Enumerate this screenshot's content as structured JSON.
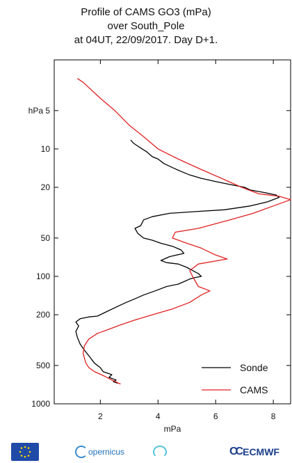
{
  "title": {
    "line1": "Profile of CAMS GO3 (mPa)",
    "line2": "over South_Pole",
    "line3": "at 04UT, 22/09/2017. Day D+1."
  },
  "chart_data": {
    "type": "line",
    "title": "Profile of CAMS GO3 (mPa) over South_Pole at 04UT, 22/09/2017. Day D+1.",
    "xlabel": "mPa",
    "ylabel": "hPa",
    "xlim": [
      0.4,
      8.6
    ],
    "ylim": [
      1000,
      2
    ],
    "y_scale": "log",
    "x_ticks": [
      2,
      4,
      6,
      8
    ],
    "y_ticks": [
      5,
      10,
      20,
      50,
      100,
      200,
      500,
      1000
    ],
    "y_tick_labels": [
      "hPa 5",
      "10",
      "20",
      "50",
      "100",
      "200",
      "500",
      "1000"
    ],
    "legend_position": "bottom-right",
    "series": [
      {
        "name": "Sonde",
        "color": "#000000",
        "points": [
          [
            2.6,
            690
          ],
          [
            2.45,
            670
          ],
          [
            2.55,
            650
          ],
          [
            2.3,
            620
          ],
          [
            2.4,
            590
          ],
          [
            2.1,
            560
          ],
          [
            2.0,
            520
          ],
          [
            1.8,
            480
          ],
          [
            1.6,
            420
          ],
          [
            1.45,
            380
          ],
          [
            1.3,
            340
          ],
          [
            1.2,
            300
          ],
          [
            1.15,
            270
          ],
          [
            1.25,
            245
          ],
          [
            1.15,
            228
          ],
          [
            1.3,
            215
          ],
          [
            1.6,
            208
          ],
          [
            1.9,
            205
          ],
          [
            2.2,
            190
          ],
          [
            2.6,
            172
          ],
          [
            2.9,
            160
          ],
          [
            3.2,
            150
          ],
          [
            3.5,
            140
          ],
          [
            3.9,
            130
          ],
          [
            4.3,
            120
          ],
          [
            4.7,
            115
          ],
          [
            4.9,
            110
          ],
          [
            5.1,
            105
          ],
          [
            5.3,
            102
          ],
          [
            5.5,
            100
          ],
          [
            5.4,
            95
          ],
          [
            5.2,
            90
          ],
          [
            5.0,
            85
          ],
          [
            4.7,
            80
          ],
          [
            4.3,
            78
          ],
          [
            4.1,
            75
          ],
          [
            4.4,
            70
          ],
          [
            4.9,
            66
          ],
          [
            4.8,
            62
          ],
          [
            4.5,
            58
          ],
          [
            4.1,
            55
          ],
          [
            3.8,
            52
          ],
          [
            3.5,
            50
          ],
          [
            3.3,
            46
          ],
          [
            3.2,
            42
          ],
          [
            3.4,
            40
          ],
          [
            3.5,
            36
          ],
          [
            3.8,
            34
          ],
          [
            4.4,
            32
          ],
          [
            5.3,
            31
          ],
          [
            6.3,
            30
          ],
          [
            7.2,
            28
          ],
          [
            7.8,
            26
          ],
          [
            8.2,
            24
          ],
          [
            8.1,
            23
          ],
          [
            7.7,
            22
          ],
          [
            7.2,
            21
          ],
          [
            7.0,
            20
          ],
          [
            6.5,
            19
          ],
          [
            6.0,
            18
          ],
          [
            5.5,
            17
          ],
          [
            5.1,
            16
          ],
          [
            4.8,
            15
          ],
          [
            4.5,
            14
          ],
          [
            4.2,
            13
          ],
          [
            4.0,
            12
          ],
          [
            3.8,
            11.5
          ],
          [
            3.6,
            10.5
          ],
          [
            3.45,
            10
          ],
          [
            3.3,
            9.5
          ],
          [
            3.15,
            9
          ],
          [
            3.05,
            8.5
          ]
        ]
      },
      {
        "name": "CAMS",
        "color": "#e02020",
        "points": [
          [
            2.7,
            700
          ],
          [
            2.4,
            650
          ],
          [
            2.1,
            600
          ],
          [
            1.8,
            560
          ],
          [
            1.6,
            520
          ],
          [
            1.5,
            480
          ],
          [
            1.45,
            440
          ],
          [
            1.4,
            400
          ],
          [
            1.45,
            350
          ],
          [
            1.6,
            310
          ],
          [
            1.9,
            280
          ],
          [
            2.3,
            260
          ],
          [
            2.7,
            240
          ],
          [
            3.2,
            220
          ],
          [
            3.8,
            200
          ],
          [
            4.5,
            180
          ],
          [
            5.1,
            160
          ],
          [
            5.5,
            140
          ],
          [
            5.8,
            130
          ],
          [
            5.4,
            120
          ],
          [
            5.2,
            100
          ],
          [
            5.1,
            90
          ],
          [
            5.4,
            80
          ],
          [
            6.4,
            73
          ],
          [
            6.0,
            68
          ],
          [
            5.5,
            60
          ],
          [
            5.0,
            55
          ],
          [
            4.5,
            50
          ],
          [
            4.6,
            45
          ],
          [
            5.4,
            42
          ],
          [
            6.5,
            36
          ],
          [
            7.3,
            32
          ],
          [
            8.0,
            28
          ],
          [
            8.6,
            25
          ],
          [
            8.2,
            23.5
          ],
          [
            7.5,
            22.5
          ],
          [
            6.9,
            20
          ],
          [
            6.2,
            17
          ],
          [
            5.5,
            14.5
          ],
          [
            4.7,
            12
          ],
          [
            4.0,
            10
          ],
          [
            3.5,
            8
          ],
          [
            3.0,
            6.5
          ],
          [
            2.5,
            5
          ],
          [
            2.0,
            4
          ],
          [
            1.4,
            3
          ],
          [
            1.2,
            2.8
          ]
        ]
      }
    ]
  },
  "footer": {
    "copernicus": "opernicus",
    "ecmwf": "ECMWF"
  },
  "colors": {
    "sonde": "#000000",
    "cams": "#e02020",
    "axis": "#000000"
  }
}
